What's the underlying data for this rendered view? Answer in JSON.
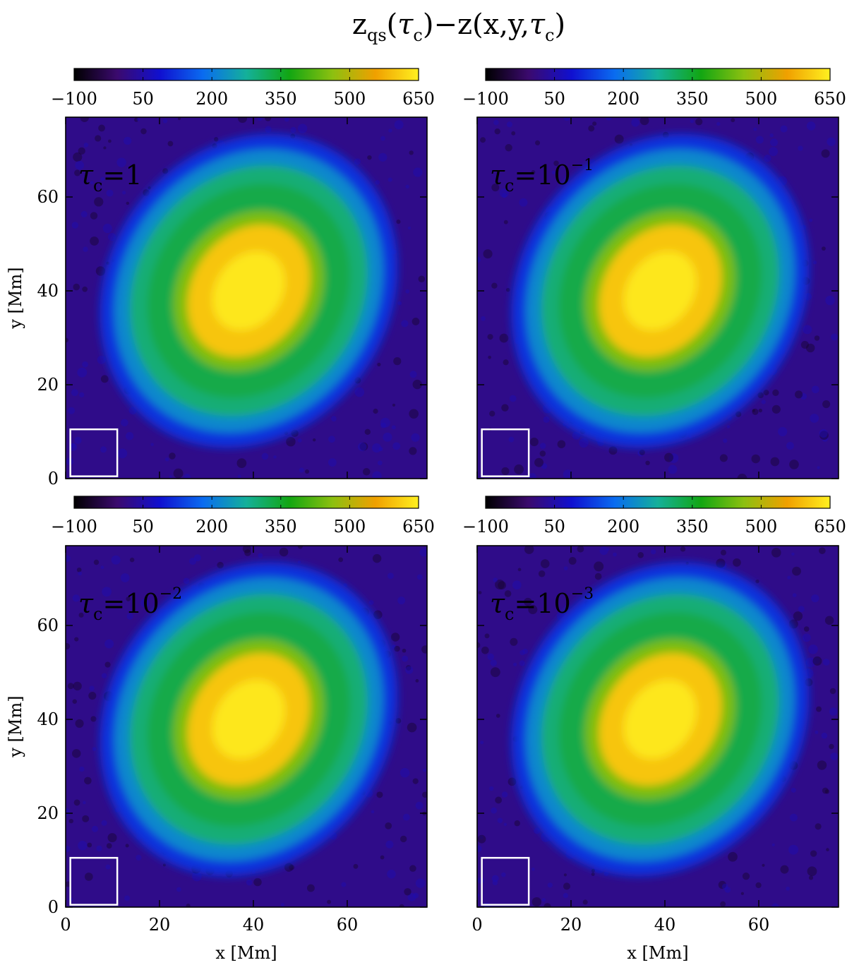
{
  "chart_data": {
    "type": "heatmap",
    "title_parts": {
      "lhs_main": "z",
      "lhs_sub": "qs",
      "lhs_arg_open": "(",
      "lhs_arg": "τ",
      "lhs_arg_sub": "c",
      "lhs_arg_close": ")",
      "minus": "−",
      "rhs_main": "z(x,y,",
      "rhs_arg": "τ",
      "rhs_arg_sub": "c",
      "rhs_close": ")"
    },
    "xlabel": "x [Mm]",
    "ylabel": "y [Mm]",
    "xlim": [
      0,
      77
    ],
    "ylim": [
      0,
      77
    ],
    "x_ticks": [
      "0",
      "20",
      "40",
      "60"
    ],
    "y_ticks": [
      "0",
      "20",
      "40",
      "60"
    ],
    "x_tick_values": [
      0,
      20,
      40,
      60
    ],
    "y_tick_values": [
      0,
      20,
      40,
      60
    ],
    "colorbar": {
      "range": [
        -100,
        650
      ],
      "ticks": [
        "−100",
        "50",
        "200",
        "350",
        "500",
        "650"
      ],
      "tick_values": [
        -100,
        50,
        200,
        350,
        500,
        650
      ],
      "colors": [
        "#000000",
        "#3b0a6e",
        "#1010d0",
        "#0a6cf0",
        "#14b09a",
        "#12a612",
        "#8cc010",
        "#f0a000",
        "#fff020"
      ]
    },
    "umbra_value": 600,
    "penumbra_value": 330,
    "background_value": 20,
    "panels": [
      {
        "id": "tau-1",
        "label_tau": "τ",
        "label_sub": "c",
        "label_eq": "=",
        "label_base": "1",
        "label_exp": ""
      },
      {
        "id": "tau-1e-1",
        "label_tau": "τ",
        "label_sub": "c",
        "label_eq": "=",
        "label_base": "10",
        "label_exp": "−1"
      },
      {
        "id": "tau-1e-2",
        "label_tau": "τ",
        "label_sub": "c",
        "label_eq": "=",
        "label_base": "10",
        "label_exp": "−2"
      },
      {
        "id": "tau-1e-3",
        "label_tau": "τ",
        "label_sub": "c",
        "label_eq": "=",
        "label_base": "10",
        "label_exp": "−3"
      }
    ],
    "inset_box": {
      "x": [
        1,
        11
      ],
      "y": [
        0.5,
        10.5
      ]
    }
  },
  "colors": {
    "box": "#ffffff",
    "panel_label": "#ffffff"
  }
}
